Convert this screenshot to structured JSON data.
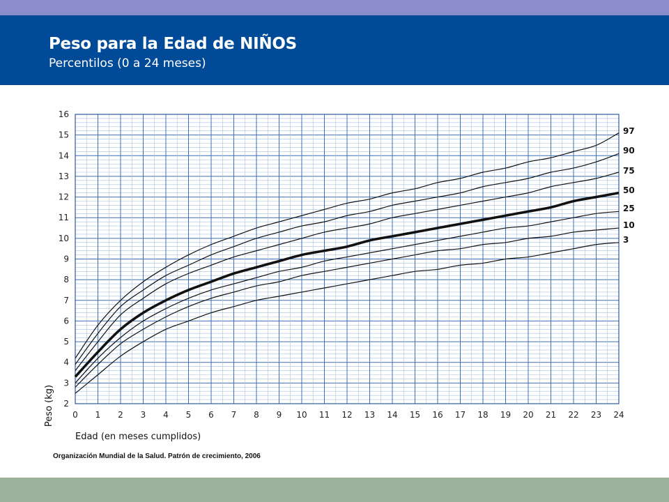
{
  "header": {
    "title": "Peso para la Edad de NIÑOS",
    "subtitle": "Percentilos (0 a 24 meses)"
  },
  "footer": {
    "source": "Organización Mundial de la Salud. Patrón de crecimiento, 2006"
  },
  "colors": {
    "top_band": "#8a8ccb",
    "header_bg": "#004a97",
    "bottom_band": "#9db09b",
    "grid_major": "#3f6fb3",
    "grid_minor": "#a9bfe0",
    "curve": "#111111"
  },
  "chart_data": {
    "type": "line",
    "title": "",
    "xlabel": "Edad (en meses cumplidos)",
    "ylabel": "Peso (kg)",
    "xlim": [
      0,
      24
    ],
    "ylim": [
      2,
      16
    ],
    "x_ticks": [
      0,
      1,
      2,
      3,
      4,
      5,
      6,
      7,
      8,
      9,
      10,
      11,
      12,
      13,
      14,
      15,
      16,
      17,
      18,
      19,
      20,
      21,
      22,
      23,
      24
    ],
    "y_ticks": [
      2,
      3,
      4,
      5,
      6,
      7,
      8,
      9,
      10,
      11,
      12,
      13,
      14,
      15,
      16
    ],
    "grid": true,
    "legend": "right-end labels",
    "x": [
      0,
      1,
      2,
      3,
      4,
      5,
      6,
      7,
      8,
      9,
      10,
      11,
      12,
      13,
      14,
      15,
      16,
      17,
      18,
      19,
      20,
      21,
      22,
      23,
      24
    ],
    "series": [
      {
        "name": "97",
        "bold": false,
        "values": [
          4.2,
          5.8,
          7.0,
          7.9,
          8.6,
          9.2,
          9.7,
          10.1,
          10.5,
          10.8,
          11.1,
          11.4,
          11.7,
          11.9,
          12.2,
          12.4,
          12.7,
          12.9,
          13.2,
          13.4,
          13.7,
          13.9,
          14.2,
          14.5,
          15.1
        ]
      },
      {
        "name": "90",
        "bold": false,
        "values": [
          3.9,
          5.4,
          6.7,
          7.5,
          8.2,
          8.7,
          9.2,
          9.6,
          10.0,
          10.3,
          10.6,
          10.8,
          11.1,
          11.3,
          11.6,
          11.8,
          12.0,
          12.2,
          12.5,
          12.7,
          12.9,
          13.2,
          13.4,
          13.7,
          14.1
        ]
      },
      {
        "name": "75",
        "bold": false,
        "values": [
          3.6,
          5.0,
          6.3,
          7.1,
          7.8,
          8.3,
          8.7,
          9.1,
          9.4,
          9.7,
          10.0,
          10.3,
          10.5,
          10.7,
          11.0,
          11.2,
          11.4,
          11.6,
          11.8,
          12.0,
          12.2,
          12.5,
          12.7,
          12.9,
          13.2
        ]
      },
      {
        "name": "50",
        "bold": true,
        "values": [
          3.3,
          4.5,
          5.6,
          6.4,
          7.0,
          7.5,
          7.9,
          8.3,
          8.6,
          8.9,
          9.2,
          9.4,
          9.6,
          9.9,
          10.1,
          10.3,
          10.5,
          10.7,
          10.9,
          11.1,
          11.3,
          11.5,
          11.8,
          12.0,
          12.2
        ]
      },
      {
        "name": "25",
        "bold": false,
        "values": [
          3.0,
          4.2,
          5.2,
          6.0,
          6.6,
          7.1,
          7.5,
          7.8,
          8.1,
          8.4,
          8.6,
          8.9,
          9.1,
          9.3,
          9.5,
          9.7,
          9.9,
          10.1,
          10.3,
          10.5,
          10.6,
          10.8,
          11.0,
          11.2,
          11.3
        ]
      },
      {
        "name": "10",
        "bold": false,
        "values": [
          2.8,
          3.9,
          4.9,
          5.6,
          6.2,
          6.7,
          7.1,
          7.4,
          7.7,
          7.9,
          8.2,
          8.4,
          8.6,
          8.8,
          9.0,
          9.2,
          9.4,
          9.5,
          9.7,
          9.8,
          10.0,
          10.1,
          10.3,
          10.4,
          10.5
        ]
      },
      {
        "name": "3",
        "bold": false,
        "values": [
          2.5,
          3.4,
          4.3,
          5.0,
          5.6,
          6.0,
          6.4,
          6.7,
          7.0,
          7.2,
          7.4,
          7.6,
          7.8,
          8.0,
          8.2,
          8.4,
          8.5,
          8.7,
          8.8,
          9.0,
          9.1,
          9.3,
          9.5,
          9.7,
          9.8
        ]
      }
    ]
  }
}
